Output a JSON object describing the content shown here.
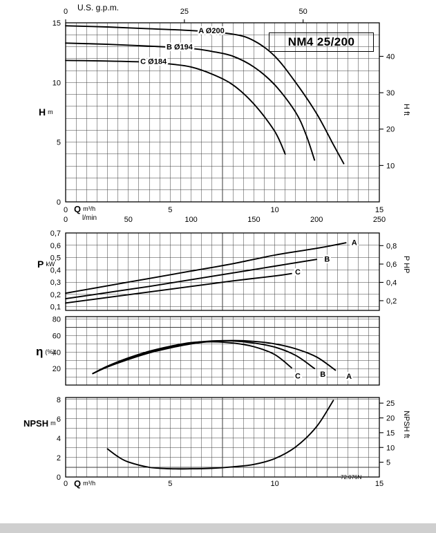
{
  "title": "NM4 25/200",
  "drawing_number": "72.076N",
  "labels": {
    "gpm_axis": "U.S. g.p.m.",
    "h_sym": "H",
    "h_unit": "m",
    "h_right": "H ft",
    "q_sym": "Q",
    "q_unit": "m³/h",
    "lmin_label": "l/min",
    "p_sym": "P",
    "p_unit": "kW",
    "p_right": "P HP",
    "eta_sym": "η",
    "eta_unit": "(%)",
    "npsh_sym": "NPSH",
    "npsh_unit": "m",
    "npsh_right": "NPSH ft"
  },
  "chart_data": [
    {
      "type": "line",
      "name": "head-flow-chart",
      "title": "NM4 25/200",
      "xlabel": "Q m³/h",
      "x2label": "U.S. g.p.m.",
      "ylabel": "H m",
      "y2label": "H ft",
      "xlim": [
        0,
        15
      ],
      "ylim": [
        0,
        15
      ],
      "x_grid_step": 0.5,
      "y_grid_step": 1,
      "grid": true,
      "legend": "on-curve",
      "y_ticks": [
        {
          "v": 0,
          "label": "0"
        },
        {
          "v": 5,
          "label": "5"
        },
        {
          "v": 10,
          "label": "10"
        },
        {
          "v": 15,
          "label": "15"
        }
      ],
      "x2_ticks": [
        {
          "v": 0,
          "label": "0"
        },
        {
          "v": 5.678,
          "label": "25"
        },
        {
          "v": 11.355,
          "label": "50"
        }
      ],
      "y2_ticks": [
        {
          "v": 3.048,
          "label": "10"
        },
        {
          "v": 6.096,
          "label": "20"
        },
        {
          "v": 9.144,
          "label": "30"
        },
        {
          "v": 12.192,
          "label": "40"
        }
      ],
      "x_ticks_rows": [
        {
          "dy": 15,
          "ticks": [
            {
              "v": 0,
              "label": "0"
            },
            {
              "v": 5,
              "label": "5"
            },
            {
              "v": 10,
              "label": "10"
            },
            {
              "v": 15,
              "label": "15"
            }
          ]
        },
        {
          "dy": 29,
          "ticks": [
            {
              "v": 0,
              "label": "0"
            },
            {
              "v": 3,
              "label": "50"
            },
            {
              "v": 6,
              "label": "100"
            },
            {
              "v": 9,
              "label": "150"
            },
            {
              "v": 12,
              "label": "200"
            },
            {
              "v": 15,
              "label": "250"
            }
          ]
        }
      ],
      "series": [
        {
          "name": "A",
          "impeller": "Ø200",
          "label": "A Ø200",
          "label_at": [
            6.97,
            14.35
          ],
          "points": [
            [
              0,
              14.75
            ],
            [
              2,
              14.65
            ],
            [
              4,
              14.5
            ],
            [
              6,
              14.35
            ],
            [
              8,
              14.05
            ],
            [
              9,
              13.5
            ],
            [
              10,
              12.2
            ],
            [
              11,
              10.0
            ],
            [
              12,
              7.4
            ],
            [
              12.8,
              4.8
            ],
            [
              13.3,
              3.2
            ]
          ]
        },
        {
          "name": "B",
          "impeller": "Ø194",
          "label": "B Ø194",
          "label_at": [
            5.45,
            13.0
          ],
          "points": [
            [
              0,
              13.3
            ],
            [
              2,
              13.2
            ],
            [
              4,
              13.05
            ],
            [
              6,
              12.85
            ],
            [
              7,
              12.6
            ],
            [
              8,
              12.2
            ],
            [
              9,
              11.3
            ],
            [
              10,
              9.8
            ],
            [
              11,
              7.5
            ],
            [
              11.5,
              5.6
            ],
            [
              11.9,
              3.5
            ]
          ]
        },
        {
          "name": "C",
          "impeller": "Ø184",
          "label": "C Ø184",
          "label_at": [
            4.2,
            11.8
          ],
          "points": [
            [
              0,
              11.85
            ],
            [
              2,
              11.8
            ],
            [
              4,
              11.7
            ],
            [
              5,
              11.55
            ],
            [
              6,
              11.3
            ],
            [
              7,
              10.7
            ],
            [
              8,
              9.8
            ],
            [
              9,
              8.2
            ],
            [
              10,
              5.9
            ],
            [
              10.5,
              4.0
            ]
          ]
        }
      ]
    },
    {
      "type": "line",
      "name": "power-chart",
      "ylabel": "P kW",
      "y2label": "P HP",
      "xlim": [
        0,
        15
      ],
      "ylim": [
        0.07,
        0.7
      ],
      "x_grid_step": 0.5,
      "y_grid_step": 0.1,
      "grid": true,
      "y_ticks": [
        {
          "v": 0.1,
          "label": "0,1"
        },
        {
          "v": 0.2,
          "label": "0,2"
        },
        {
          "v": 0.3,
          "label": "0,3"
        },
        {
          "v": 0.4,
          "label": "0,4"
        },
        {
          "v": 0.5,
          "label": "0,5"
        },
        {
          "v": 0.6,
          "label": "0,6"
        },
        {
          "v": 0.7,
          "label": "0,7"
        }
      ],
      "y2_ticks": [
        {
          "v": 0.149,
          "label": "0,2"
        },
        {
          "v": 0.298,
          "label": "0,4"
        },
        {
          "v": 0.447,
          "label": "0,6"
        },
        {
          "v": 0.597,
          "label": "0,8"
        }
      ],
      "series": [
        {
          "name": "A",
          "label": "A",
          "label_at": [
            13.8,
            0.625
          ],
          "points": [
            [
              0,
              0.21
            ],
            [
              2,
              0.27
            ],
            [
              4,
              0.33
            ],
            [
              6,
              0.39
            ],
            [
              8,
              0.45
            ],
            [
              10,
              0.52
            ],
            [
              12,
              0.575
            ],
            [
              13.4,
              0.62
            ]
          ]
        },
        {
          "name": "B",
          "label": "B",
          "label_at": [
            12.5,
            0.49
          ],
          "points": [
            [
              0,
              0.165
            ],
            [
              2,
              0.215
            ],
            [
              4,
              0.265
            ],
            [
              6,
              0.32
            ],
            [
              8,
              0.375
            ],
            [
              10,
              0.43
            ],
            [
              12,
              0.485
            ]
          ]
        },
        {
          "name": "C",
          "label": "C",
          "label_at": [
            11.1,
            0.385
          ],
          "points": [
            [
              0,
              0.13
            ],
            [
              2,
              0.175
            ],
            [
              4,
              0.22
            ],
            [
              6,
              0.265
            ],
            [
              8,
              0.31
            ],
            [
              10,
              0.35
            ],
            [
              10.8,
              0.37
            ]
          ]
        }
      ]
    },
    {
      "type": "line",
      "name": "efficiency-chart",
      "ylabel": "η (%)",
      "xlim": [
        0,
        15
      ],
      "ylim": [
        0,
        83
      ],
      "x_grid_step": 0.5,
      "y_grid_step": 10,
      "grid": true,
      "y_ticks": [
        {
          "v": 20,
          "label": "20"
        },
        {
          "v": 40,
          "label": "40"
        },
        {
          "v": 60,
          "label": "60"
        },
        {
          "v": 80,
          "label": "80"
        }
      ],
      "series": [
        {
          "name": "A",
          "label": "A",
          "label_at": [
            13.55,
            11
          ],
          "points": [
            [
              1.3,
              14
            ],
            [
              2,
              22
            ],
            [
              3,
              31
            ],
            [
              4,
              39
            ],
            [
              5,
              45
            ],
            [
              6,
              50
            ],
            [
              7,
              53
            ],
            [
              8,
              54
            ],
            [
              9,
              53
            ],
            [
              10,
              50
            ],
            [
              11,
              44
            ],
            [
              12,
              34
            ],
            [
              12.9,
              18
            ]
          ]
        },
        {
          "name": "B",
          "label": "B",
          "label_at": [
            12.3,
            13.5
          ],
          "points": [
            [
              1.3,
              14
            ],
            [
              2,
              22
            ],
            [
              3,
              32
            ],
            [
              4,
              40
            ],
            [
              5,
              46
            ],
            [
              6,
              51
            ],
            [
              7,
              53.5
            ],
            [
              8,
              53.5
            ],
            [
              9,
              51
            ],
            [
              10,
              46
            ],
            [
              11,
              36
            ],
            [
              11.9,
              20
            ]
          ]
        },
        {
          "name": "C",
          "label": "C",
          "label_at": [
            11.1,
            11.5
          ],
          "points": [
            [
              1.3,
              14
            ],
            [
              2,
              23
            ],
            [
              3,
              33
            ],
            [
              4,
              41
            ],
            [
              5,
              47
            ],
            [
              6,
              51.5
            ],
            [
              7,
              52.5
            ],
            [
              8,
              51
            ],
            [
              9,
              46.5
            ],
            [
              10,
              37
            ],
            [
              10.8,
              21
            ]
          ]
        }
      ]
    },
    {
      "type": "line",
      "name": "npsh-chart",
      "xlabel": "Q m³/h",
      "ylabel": "NPSH m",
      "y2label": "NPSH ft",
      "xlim": [
        0,
        15
      ],
      "ylim": [
        0,
        8.2
      ],
      "x_grid_step": 0.5,
      "y_grid_step": 1,
      "grid": true,
      "y_ticks": [
        {
          "v": 0,
          "label": "0"
        },
        {
          "v": 2,
          "label": "2"
        },
        {
          "v": 4,
          "label": "4"
        },
        {
          "v": 6,
          "label": "6"
        },
        {
          "v": 8,
          "label": "8"
        }
      ],
      "y2_ticks": [
        {
          "v": 1.524,
          "label": "5"
        },
        {
          "v": 3.048,
          "label": "10"
        },
        {
          "v": 4.572,
          "label": "15"
        },
        {
          "v": 6.096,
          "label": "20"
        },
        {
          "v": 7.62,
          "label": "25"
        }
      ],
      "x_ticks_rows": [
        {
          "dy": 13,
          "ticks": [
            {
              "v": 0,
              "label": "0"
            },
            {
              "v": 5,
              "label": "5"
            },
            {
              "v": 10,
              "label": "10"
            },
            {
              "v": 15,
              "label": "15"
            }
          ]
        }
      ],
      "series": [
        {
          "name": "NPSH",
          "label": "",
          "points": [
            [
              2,
              2.9
            ],
            [
              2.5,
              2.1
            ],
            [
              3,
              1.55
            ],
            [
              4,
              1.0
            ],
            [
              5,
              0.85
            ],
            [
              6,
              0.85
            ],
            [
              7,
              0.9
            ],
            [
              8,
              1.05
            ],
            [
              9,
              1.3
            ],
            [
              10,
              1.9
            ],
            [
              11,
              3.1
            ],
            [
              12,
              5.2
            ],
            [
              12.8,
              7.9
            ]
          ]
        }
      ]
    }
  ]
}
